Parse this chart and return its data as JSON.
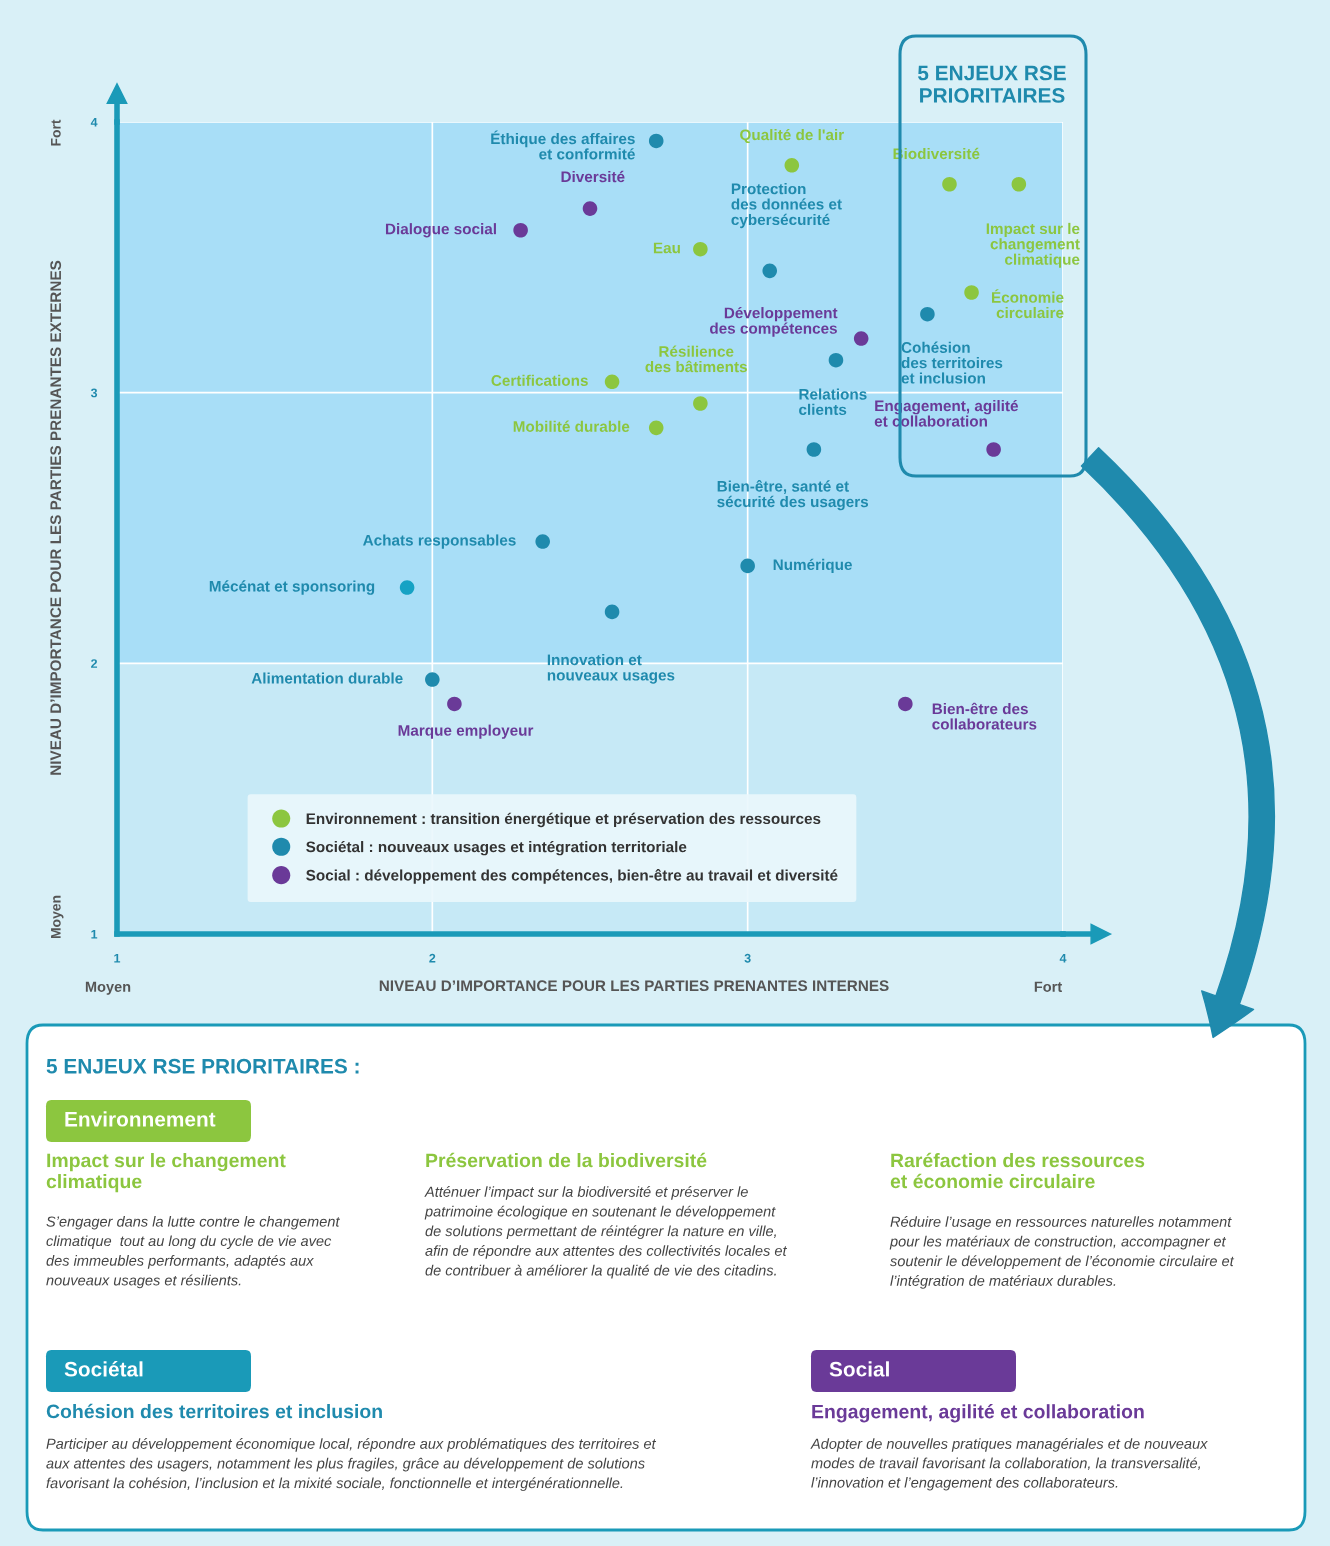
{
  "chart_data": {
    "type": "scatter",
    "xlabel": "NIVEAU D’IMPORTANCE POUR LES PARTIES PRENANTES INTERNES",
    "ylabel": "NIVEAU D’IMPORTANCE POUR LES PARTIES PRENANTES EXTERNES",
    "xlim": [
      1,
      4
    ],
    "ylim": [
      1,
      4
    ],
    "xticks": [
      1,
      2,
      3,
      4
    ],
    "yticks": [
      1,
      2,
      3,
      4
    ],
    "grid": true,
    "legend": "bottom",
    "marker": "circle",
    "bands": [
      {
        "axis": "y",
        "from": 2,
        "to": 4,
        "color": "#a8def7"
      },
      {
        "axis": "y",
        "from": 1,
        "to": 2,
        "color": "#c6e9f6"
      }
    ],
    "series": [
      {
        "name": "Environnement : transition énergétique et préservation des ressources",
        "color": "#8cc63f",
        "x": [
          3.14,
          3.64,
          3.86,
          3.71,
          2.85,
          2.57,
          2.85,
          2.71
        ],
        "values": [
          3.84,
          3.77,
          3.77,
          3.37,
          3.53,
          3.04,
          2.96,
          2.87
        ]
      },
      {
        "name": "Sociétal : nouveaux usages et intégration territoriale",
        "color": "#1f8aad",
        "x": [
          2.71,
          3.07,
          3.57,
          3.28,
          3.21,
          2.35,
          3.0,
          1.92,
          2.57,
          2.0
        ],
        "values": [
          3.93,
          3.45,
          3.29,
          3.12,
          2.79,
          2.45,
          2.36,
          2.28,
          2.19,
          1.94
        ],
        "colors": [
          "#1f8aad",
          "#1f8aad",
          "#1f8aad",
          "#1f8aad",
          "#1f8aad",
          "#1f8aad",
          "#1f8aad",
          "#16a2c4",
          "#1f8aad",
          "#1f8aad"
        ]
      },
      {
        "name": "Social : développement des compétences, bien-être au travail et diversité",
        "color": "#6a3a98",
        "x": [
          2.5,
          2.28,
          3.36,
          3.78,
          2.07,
          3.5
        ],
        "values": [
          3.68,
          3.6,
          3.2,
          2.79,
          1.85,
          1.85
        ]
      }
    ],
    "annotations": [
      {
        "text": "Qualité de l'air",
        "x": 3.14,
        "y": 3.84
      },
      {
        "text": "Biodiversité",
        "x": 3.64,
        "y": 3.77
      },
      {
        "text": "Impact sur le\nchangement\nclimatique",
        "x": 3.86,
        "y": 3.77
      },
      {
        "text": "Économie\ncirculaire",
        "x": 3.71,
        "y": 3.37
      },
      {
        "text": "Eau",
        "x": 2.85,
        "y": 3.53
      },
      {
        "text": "Certifications",
        "x": 2.57,
        "y": 3.04
      },
      {
        "text": "Résilience\ndes bâtiments",
        "x": 2.85,
        "y": 2.96
      },
      {
        "text": "Mobilité durable",
        "x": 2.71,
        "y": 2.87
      },
      {
        "text": "Éthique des affaires\net conformité",
        "x": 2.71,
        "y": 3.93
      },
      {
        "text": "Protection\ndes données et\ncybersécurité",
        "x": 3.07,
        "y": 3.45
      },
      {
        "text": "Cohésion\ndes territoires\net inclusion",
        "x": 3.57,
        "y": 3.29
      },
      {
        "text": "Relations\nclients",
        "x": 3.28,
        "y": 3.12
      },
      {
        "text": "Bien-être, santé et\nsécurité des usagers",
        "x": 3.21,
        "y": 2.79
      },
      {
        "text": "Achats responsables",
        "x": 2.35,
        "y": 2.45
      },
      {
        "text": "Numérique",
        "x": 3.0,
        "y": 2.36
      },
      {
        "text": "Mécénat et sponsoring",
        "x": 1.92,
        "y": 2.28
      },
      {
        "text": "Innovation et\nnouveaux usages",
        "x": 2.57,
        "y": 2.19
      },
      {
        "text": "Alimentation durable",
        "x": 2.0,
        "y": 1.94
      },
      {
        "text": "Diversité",
        "x": 2.5,
        "y": 3.68
      },
      {
        "text": "Dialogue social",
        "x": 2.28,
        "y": 3.6
      },
      {
        "text": "Développement\ndes compétences",
        "x": 3.36,
        "y": 3.2
      },
      {
        "text": "Engagement, agilité\net collaboration",
        "x": 3.78,
        "y": 2.79
      },
      {
        "text": "Marque employeur",
        "x": 2.07,
        "y": 1.85
      },
      {
        "text": "Bien-être des\ncollaborateurs",
        "x": 3.5,
        "y": 1.85
      },
      "Fort",
      "Moyen",
      "Moyen",
      "Fort",
      "5 ENJEUX RSE\nPRIORITAIRES",
      "5 ENJEUX RSE PRIORITAIRES :",
      "Environnement",
      "Impact sur le changement\nclimatique",
      "S’engager dans la lutte contre le changement\nclimatique  tout au long du cycle de vie avec\ndes immeubles performants, adaptés aux\nnouveaux usages et résilients.",
      "Préservation de la biodiversité",
      "Atténuer l’impact sur la biodiversité et préserver le\npatrimoine écologique en soutenant le développement\nde solutions permettant de réintégrer la nature en ville,\nafin de répondre aux attentes des collectivités locales et\nde contribuer à améliorer la qualité de vie des citadins.",
      "Raréfaction des ressources\net économie circulaire",
      "Réduire l’usage en ressources naturelles notamment\npour les matériaux de construction, accompagner et\nsoutenir le développement de l’économie circulaire et\nl’intégration de matériaux durables.",
      "Sociétal",
      "Cohésion des territoires et inclusion",
      "Participer au développement économique local, répondre aux problématiques des territoires et\naux attentes des usagers, notamment les plus fragiles, grâce au développement de solutions\nfavorisant la cohésion, l’inclusion et la mixité sociale, fonctionnelle et intergénérationnelle.",
      "Social",
      "Engagement, agilité et collaboration",
      "Adopter de nouvelles pratiques managériales et de nouveaux\nmodes de travail favorisant la collaboration, la transversalité,\nl’innovation et l’engagement des collaborateurs."
    ]
  }
}
